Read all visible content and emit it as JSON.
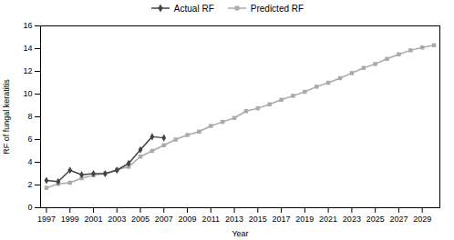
{
  "chart_data": {
    "type": "line",
    "x": [
      1997,
      1998,
      1999,
      2000,
      2001,
      2002,
      2003,
      2004,
      2005,
      2006,
      2007,
      2008,
      2009,
      2010,
      2011,
      2012,
      2013,
      2014,
      2015,
      2016,
      2017,
      2018,
      2019,
      2020,
      2021,
      2022,
      2023,
      2024,
      2025,
      2026,
      2027,
      2028,
      2029,
      2030
    ],
    "series": [
      {
        "name": "Actual RF",
        "color": "#444444",
        "marker": "diamond",
        "values": [
          2.4,
          2.3,
          3.3,
          2.9,
          3.0,
          3.0,
          3.3,
          3.9,
          5.1,
          6.25,
          6.15,
          null,
          null,
          null,
          null,
          null,
          null,
          null,
          null,
          null,
          null,
          null,
          null,
          null,
          null,
          null,
          null,
          null,
          null,
          null,
          null,
          null,
          null,
          null
        ]
      },
      {
        "name": "Predicted RF",
        "color": "#aaaaaa",
        "marker": "square",
        "values": [
          1.75,
          2.1,
          2.2,
          2.6,
          2.85,
          3.0,
          3.35,
          3.6,
          4.5,
          5.0,
          5.5,
          6.0,
          6.4,
          6.7,
          7.2,
          7.55,
          7.9,
          8.5,
          8.75,
          9.1,
          9.5,
          9.85,
          10.2,
          10.65,
          11.0,
          11.4,
          11.85,
          12.3,
          12.65,
          13.1,
          13.5,
          13.85,
          14.1,
          14.3
        ]
      }
    ],
    "xlabel": "Year",
    "ylabel": "RF of fungal keratitis",
    "xlim": [
      1996.5,
      2030.5
    ],
    "xticks": [
      1997,
      1999,
      2001,
      2003,
      2005,
      2007,
      2009,
      2011,
      2013,
      2015,
      2017,
      2019,
      2021,
      2023,
      2025,
      2027,
      2029
    ],
    "ylim": [
      0,
      16
    ],
    "yticks": [
      0,
      2,
      4,
      6,
      8,
      10,
      12,
      14,
      16
    ],
    "grid": false,
    "legend": "top"
  }
}
